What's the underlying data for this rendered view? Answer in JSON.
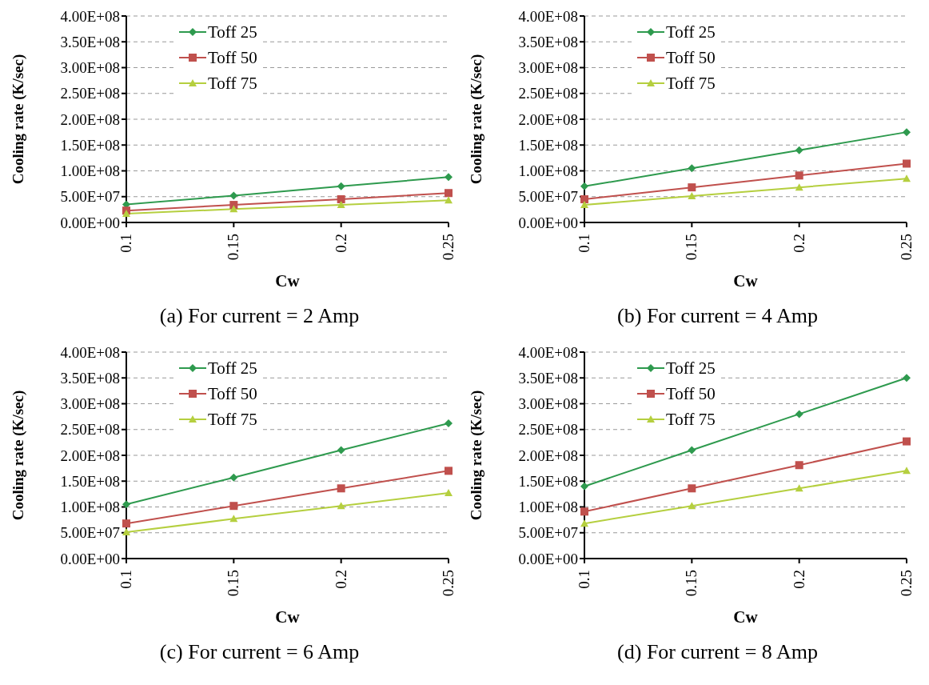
{
  "chart_data": [
    {
      "type": "line",
      "title": "(a) For current = 2 Amp",
      "xlabel": "Cw",
      "ylabel": "Cooling rate (K/sec)",
      "categories": [
        "0.1",
        "0.15",
        "0.2",
        "0.25"
      ],
      "ylim": [
        0,
        400000000
      ],
      "yticks": [
        {
          "value": 0,
          "label": "0.00E+00"
        },
        {
          "value": 50000000,
          "label": "5.00E+07"
        },
        {
          "value": 100000000,
          "label": "1.00E+08"
        },
        {
          "value": 150000000,
          "label": "1.50E+08"
        },
        {
          "value": 200000000,
          "label": "2.00E+08"
        },
        {
          "value": 250000000,
          "label": "2.50E+08"
        },
        {
          "value": 300000000,
          "label": "3.00E+08"
        },
        {
          "value": 350000000,
          "label": "3.50E+08"
        },
        {
          "value": 400000000,
          "label": "4.00E+08"
        }
      ],
      "grid": "y",
      "legend": "top left",
      "series": [
        {
          "name": "Toff 25",
          "color": "#2e9a4e",
          "marker": "diamond",
          "values": [
            35000000,
            52000000,
            70000000,
            88000000
          ]
        },
        {
          "name": "Toff 50",
          "color": "#c0504d",
          "marker": "square",
          "values": [
            23000000,
            34000000,
            45000000,
            57000000
          ]
        },
        {
          "name": "Toff 75",
          "color": "#b5cf3f",
          "marker": "triangle",
          "values": [
            17000000,
            26000000,
            34000000,
            43000000
          ]
        }
      ]
    },
    {
      "type": "line",
      "title": "(b) For current = 4 Amp",
      "xlabel": "Cw",
      "ylabel": "Cooling rate (K/sec)",
      "categories": [
        "0.1",
        "0.15",
        "0.2",
        "0.25"
      ],
      "ylim": [
        0,
        400000000
      ],
      "yticks": [
        {
          "value": 0,
          "label": "0.00E+00"
        },
        {
          "value": 50000000,
          "label": "5.00E+07"
        },
        {
          "value": 100000000,
          "label": "1.00E+08"
        },
        {
          "value": 150000000,
          "label": "1.50E+08"
        },
        {
          "value": 200000000,
          "label": "2.00E+08"
        },
        {
          "value": 250000000,
          "label": "2.50E+08"
        },
        {
          "value": 300000000,
          "label": "3.00E+08"
        },
        {
          "value": 350000000,
          "label": "3.50E+08"
        },
        {
          "value": 400000000,
          "label": "4.00E+08"
        }
      ],
      "grid": "y",
      "legend": "top left",
      "series": [
        {
          "name": "Toff 25",
          "color": "#2e9a4e",
          "marker": "diamond",
          "values": [
            70000000,
            105000000,
            140000000,
            175000000
          ]
        },
        {
          "name": "Toff 50",
          "color": "#c0504d",
          "marker": "square",
          "values": [
            45000000,
            68000000,
            91000000,
            114000000
          ]
        },
        {
          "name": "Toff 75",
          "color": "#b5cf3f",
          "marker": "triangle",
          "values": [
            34000000,
            51000000,
            68000000,
            85000000
          ]
        }
      ]
    },
    {
      "type": "line",
      "title": "(c) For current = 6 Amp",
      "xlabel": "Cw",
      "ylabel": "Cooling rate (K/sec)",
      "categories": [
        "0.1",
        "0.15",
        "0.2",
        "0.25"
      ],
      "ylim": [
        0,
        400000000
      ],
      "yticks": [
        {
          "value": 0,
          "label": "0.00E+00"
        },
        {
          "value": 50000000,
          "label": "5.00E+07"
        },
        {
          "value": 100000000,
          "label": "1.00E+08"
        },
        {
          "value": 150000000,
          "label": "1.50E+08"
        },
        {
          "value": 200000000,
          "label": "2.00E+08"
        },
        {
          "value": 250000000,
          "label": "2.50E+08"
        },
        {
          "value": 300000000,
          "label": "3.00E+08"
        },
        {
          "value": 350000000,
          "label": "3.50E+08"
        },
        {
          "value": 400000000,
          "label": "4.00E+08"
        }
      ],
      "grid": "y",
      "legend": "top left",
      "series": [
        {
          "name": "Toff 25",
          "color": "#2e9a4e",
          "marker": "diamond",
          "values": [
            105000000,
            157000000,
            210000000,
            262000000
          ]
        },
        {
          "name": "Toff 50",
          "color": "#c0504d",
          "marker": "square",
          "values": [
            68000000,
            102000000,
            136000000,
            170000000
          ]
        },
        {
          "name": "Toff 75",
          "color": "#b5cf3f",
          "marker": "triangle",
          "values": [
            51000000,
            77000000,
            102000000,
            127000000
          ]
        }
      ]
    },
    {
      "type": "line",
      "title": "(d) For current = 8 Amp",
      "xlabel": "Cw",
      "ylabel": "Cooling rate (K/sec)",
      "categories": [
        "0.1",
        "0.15",
        "0.2",
        "0.25"
      ],
      "ylim": [
        0,
        400000000
      ],
      "yticks": [
        {
          "value": 0,
          "label": "0.00E+00"
        },
        {
          "value": 50000000,
          "label": "5.00E+07"
        },
        {
          "value": 100000000,
          "label": "1.00E+08"
        },
        {
          "value": 150000000,
          "label": "1.50E+08"
        },
        {
          "value": 200000000,
          "label": "2.00E+08"
        },
        {
          "value": 250000000,
          "label": "2.50E+08"
        },
        {
          "value": 300000000,
          "label": "3.00E+08"
        },
        {
          "value": 350000000,
          "label": "3.50E+08"
        },
        {
          "value": 400000000,
          "label": "4.00E+08"
        }
      ],
      "grid": "y",
      "legend": "top left",
      "series": [
        {
          "name": "Toff 25",
          "color": "#2e9a4e",
          "marker": "diamond",
          "values": [
            140000000,
            210000000,
            280000000,
            350000000
          ]
        },
        {
          "name": "Toff 50",
          "color": "#c0504d",
          "marker": "square",
          "values": [
            91000000,
            136000000,
            181000000,
            227000000
          ]
        },
        {
          "name": "Toff 75",
          "color": "#b5cf3f",
          "marker": "triangle",
          "values": [
            68000000,
            102000000,
            136000000,
            170000000
          ]
        }
      ]
    }
  ]
}
